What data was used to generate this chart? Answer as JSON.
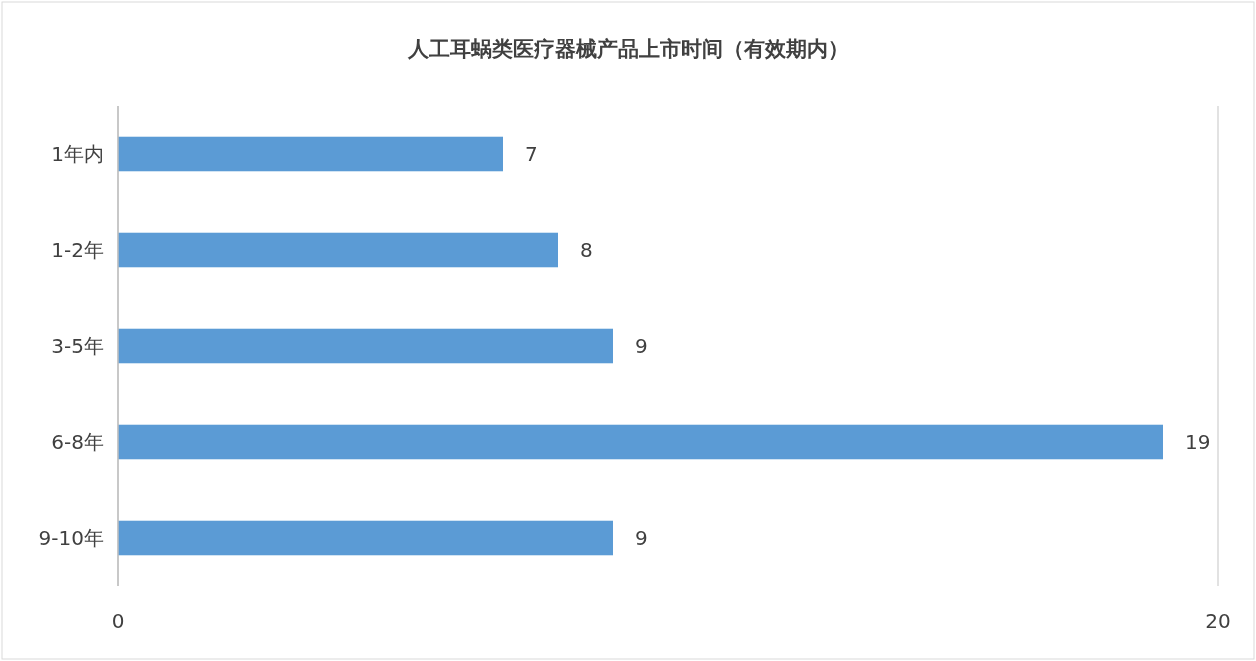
{
  "chart_data": {
    "type": "bar",
    "orientation": "horizontal",
    "title": "人工耳蜗类医疗器械产品上市时间（有效期内）",
    "categories": [
      "1年内",
      "1-2年",
      "3-5年",
      "6-8年",
      "9-10年"
    ],
    "values": [
      7,
      8,
      9,
      19,
      9
    ],
    "color": "#5b9bd5",
    "xlim": [
      0,
      20
    ],
    "xticks": [
      0,
      20
    ],
    "grid": "x",
    "data_labels": true
  }
}
